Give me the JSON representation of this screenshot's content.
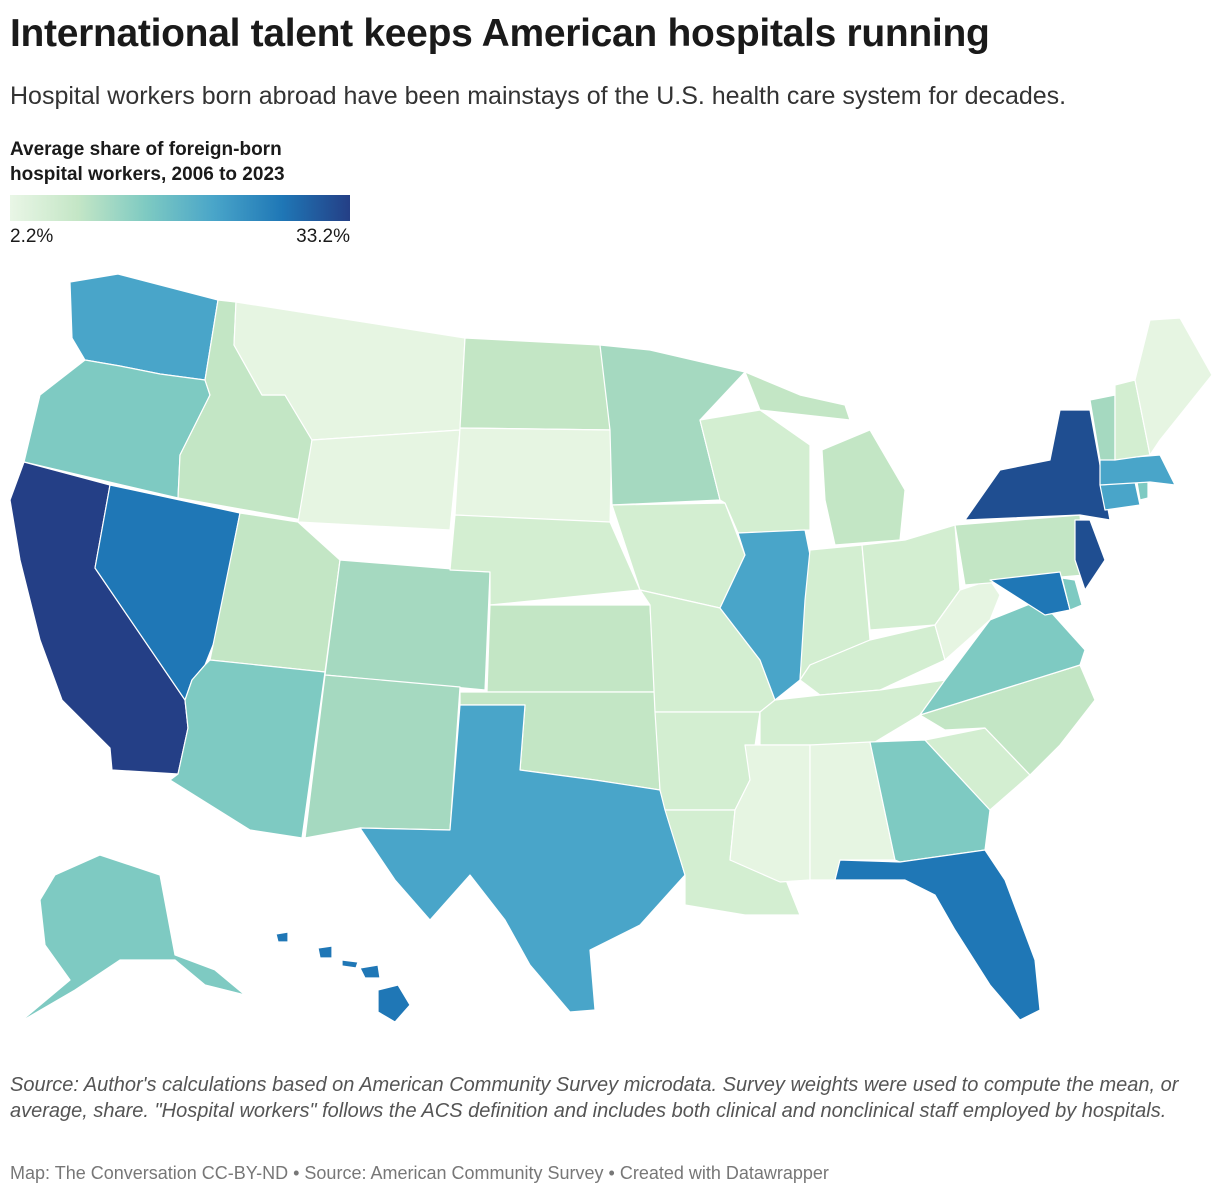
{
  "header": {
    "title": "International talent keeps American hospitals running",
    "subtitle": "Hospital workers born abroad have been mainstays of the U.S. health care system for decades."
  },
  "legend": {
    "title_line1": "Average share of foreign-born",
    "title_line2": "hospital workers, 2006 to 2023",
    "min_label": "2.2%",
    "max_label": "33.2%",
    "colors": [
      "#e9f6e6",
      "#c4e6c6",
      "#7ecac2",
      "#49a5c9",
      "#1f77b6",
      "#243f86"
    ]
  },
  "map": {
    "type": "choropleth",
    "scale_min": 2.2,
    "scale_max": 33.2,
    "colors": {
      "very_light": "#e6f5e2",
      "light": "#d3eed1",
      "light_green": "#c3e6c5",
      "green": "#a5d9c0",
      "teal": "#7ecac2",
      "mid_blue": "#49a5c9",
      "blue": "#1f77b6",
      "dark_blue": "#243f86"
    }
  },
  "footer": {
    "notes": "Source: Author's calculations based on American Community Survey microdata. Survey weights were used to compute the mean, or average, share. \"Hospital workers\" follows the ACS definition and includes both clinical and nonclinical staff employed by hospitals.",
    "credit": "Map: The Conversation CC-BY-ND • Source: American Community Survey • Created with Datawrapper"
  }
}
